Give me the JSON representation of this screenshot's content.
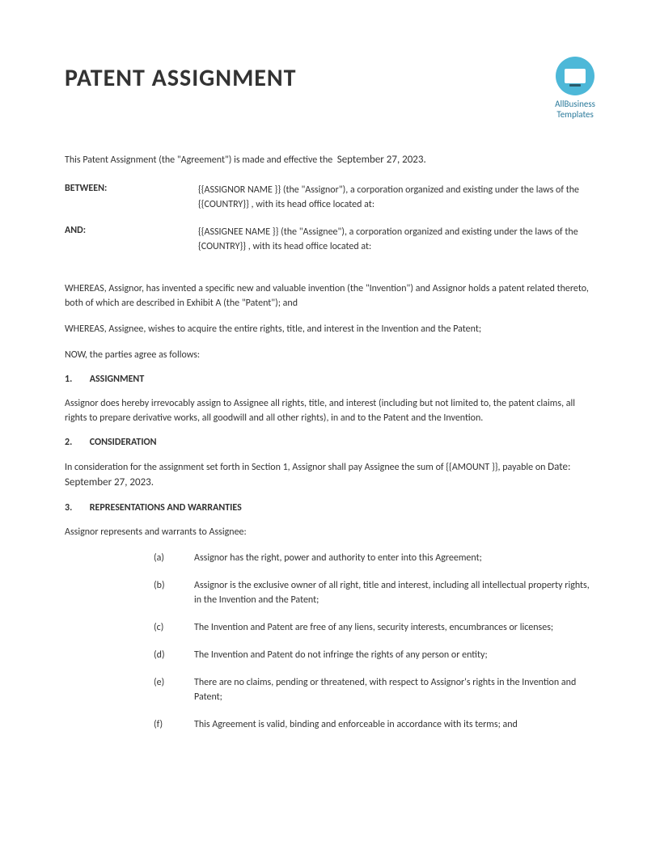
{
  "title": "PATENT ASSIGNMENT",
  "logo": {
    "line1": "AllBusiness",
    "line2": "Templates"
  },
  "intro_prefix": "This Patent Assignment (the \"Agreement\") is made and effective the",
  "intro_date": "September 27, 2023.",
  "parties": {
    "between": {
      "label": "BETWEEN:",
      "text": "{{ASSIGNOR NAME }} (the \"Assignor\"), a corporation organized and existing under the laws of the {{COUNTRY}} , with its head office located at:"
    },
    "and": {
      "label": "AND:",
      "text": "{{ASSIGNEE NAME }} (the \"Assignee\"),  a corporation organized and existing under the laws of the {COUNTRY}} , with its head office located at:"
    }
  },
  "whereas1": "WHEREAS, Assignor, has invented a specific new and valuable invention (the \"Invention\") and Assignor holds a patent related thereto, both of which are described in Exhibit A (the \"Patent\"); and",
  "whereas2": "WHEREAS, Assignee, wishes to acquire the entire rights, title, and interest in the Invention and the Patent;",
  "now": "NOW, the parties agree as follows:",
  "sections": {
    "s1": {
      "num": "1.",
      "title": "ASSIGNMENT",
      "body": "Assignor does hereby irrevocably assign to Assignee all rights, title, and interest (including but not limited to, the patent claims, all rights to prepare derivative works, all goodwill and all other rights), in and to the Patent and the Invention."
    },
    "s2": {
      "num": "2.",
      "title": "CONSIDERATION",
      "body_prefix": "In consideration for the assignment set forth in Section 1, Assignor shall pay Assignee the sum of {{AMOUNT }}, payable on ",
      "body_date": "Date:  September 27, 2023."
    },
    "s3": {
      "num": "3.",
      "title": "REPRESENTATIONS AND WARRANTIES",
      "intro": "Assignor represents and warrants to Assignee:"
    }
  },
  "warranties": [
    {
      "letter": "(a)",
      "text": "Assignor has the right, power and authority to enter into this Agreement;"
    },
    {
      "letter": "(b)",
      "text": "Assignor is the exclusive owner of all right, title and interest, including all intellectual property rights, in the Invention and the Patent;"
    },
    {
      "letter": "(c)",
      "text": "The Invention and Patent are free of any liens, security interests, encumbrances or licenses;"
    },
    {
      "letter": "(d)",
      "text": "The Invention and Patent do not infringe the rights of any person or entity;"
    },
    {
      "letter": "(e)",
      "text": "There are no claims, pending or threatened, with respect to Assignor's rights in the Invention and Patent;"
    },
    {
      "letter": "(f)",
      "text": "This Agreement is valid, binding and enforceable in accordance with its terms; and"
    }
  ]
}
